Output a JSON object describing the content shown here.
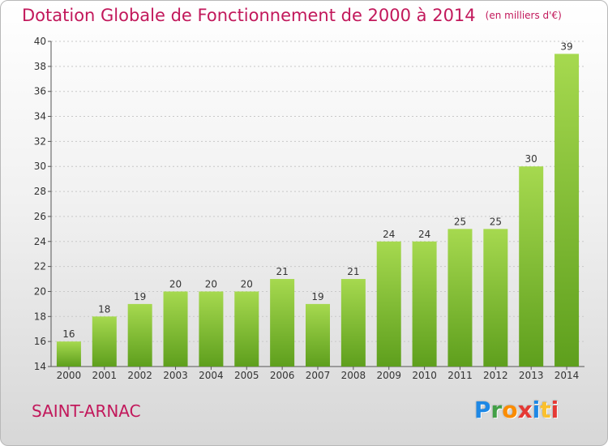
{
  "title": "Dotation Globale de Fonctionnement de 2000 à 2014",
  "unit_label": "(en milliers d'€)",
  "commune": "SAINT-ARNAC",
  "logo": {
    "letters": [
      "P",
      "r",
      "o",
      "x",
      "i",
      "t",
      "i"
    ],
    "colors": [
      "#1e88e5",
      "#43a047",
      "#fb8c00",
      "#e53935",
      "#1e88e5",
      "#fbc02d",
      "#e53935"
    ]
  },
  "colors": {
    "accent": "#c2185b",
    "bar_top": "#a6d94f",
    "bar_bottom": "#5e9f1d"
  },
  "chart_data": {
    "type": "bar",
    "categories": [
      "2000",
      "2001",
      "2002",
      "2003",
      "2004",
      "2005",
      "2006",
      "2007",
      "2008",
      "2009",
      "2010",
      "2011",
      "2012",
      "2013",
      "2014"
    ],
    "values": [
      16,
      18,
      19,
      20,
      20,
      20,
      21,
      19,
      21,
      24,
      24,
      25,
      25,
      30,
      39
    ],
    "title": "Dotation Globale de Fonctionnement de 2000 à 2014",
    "xlabel": "",
    "ylabel": "",
    "ylim": [
      14,
      40
    ],
    "yticks": [
      14,
      16,
      18,
      20,
      22,
      24,
      26,
      28,
      30,
      32,
      34,
      36,
      38,
      40
    ],
    "grid": true,
    "legend": "none"
  }
}
